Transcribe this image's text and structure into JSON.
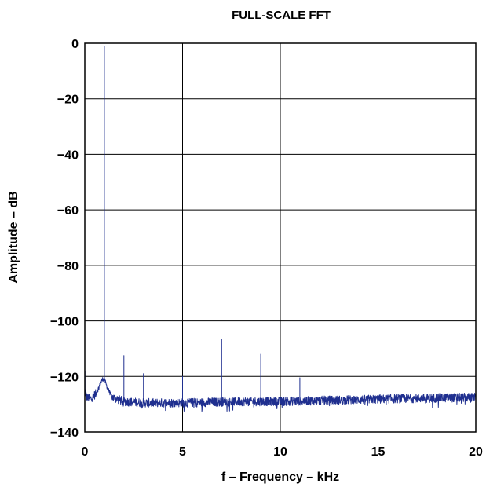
{
  "chart_data": {
    "type": "line",
    "title": "FULL-SCALE FFT",
    "xlabel": "f – Frequency – kHz",
    "ylabel": "Amplitude – dB",
    "xlim": [
      0,
      20
    ],
    "ylim": [
      -140,
      0
    ],
    "xticks": [
      0,
      5,
      10,
      15,
      20
    ],
    "xtick_labels": [
      "0",
      "5",
      "10",
      "15",
      "20"
    ],
    "yticks": [
      0,
      -20,
      -40,
      -60,
      -80,
      -100,
      -120,
      -140
    ],
    "ytick_labels": [
      "0",
      "−20",
      "−40",
      "−60",
      "−80",
      "−100",
      "−120",
      "−140"
    ],
    "grid": true,
    "line_color": "#1f2f8f",
    "noise_floor": [
      {
        "x": 0.0,
        "y": -125
      },
      {
        "x": 0.1,
        "y": -127.5
      },
      {
        "x": 0.3,
        "y": -128
      },
      {
        "x": 0.6,
        "y": -126
      },
      {
        "x": 0.8,
        "y": -122.5
      },
      {
        "x": 0.9,
        "y": -121
      },
      {
        "x": 1.0,
        "y": -121
      },
      {
        "x": 1.15,
        "y": -124
      },
      {
        "x": 1.4,
        "y": -127.5
      },
      {
        "x": 2.0,
        "y": -129
      },
      {
        "x": 3.0,
        "y": -129.5
      },
      {
        "x": 5.0,
        "y": -129.5
      },
      {
        "x": 8.0,
        "y": -129
      },
      {
        "x": 10.0,
        "y": -129
      },
      {
        "x": 13.0,
        "y": -128.5
      },
      {
        "x": 16.0,
        "y": -128
      },
      {
        "x": 20.0,
        "y": -127.5
      }
    ],
    "peaks": [
      {
        "x": 0.05,
        "y": -118
      },
      {
        "x": 1.0,
        "y": -1
      },
      {
        "x": 2.0,
        "y": -112.5
      },
      {
        "x": 3.0,
        "y": -119
      },
      {
        "x": 5.0,
        "y": -120
      },
      {
        "x": 7.0,
        "y": -106.5
      },
      {
        "x": 9.0,
        "y": -112
      },
      {
        "x": 11.0,
        "y": -120.5
      },
      {
        "x": 15.0,
        "y": -124.5
      }
    ]
  }
}
